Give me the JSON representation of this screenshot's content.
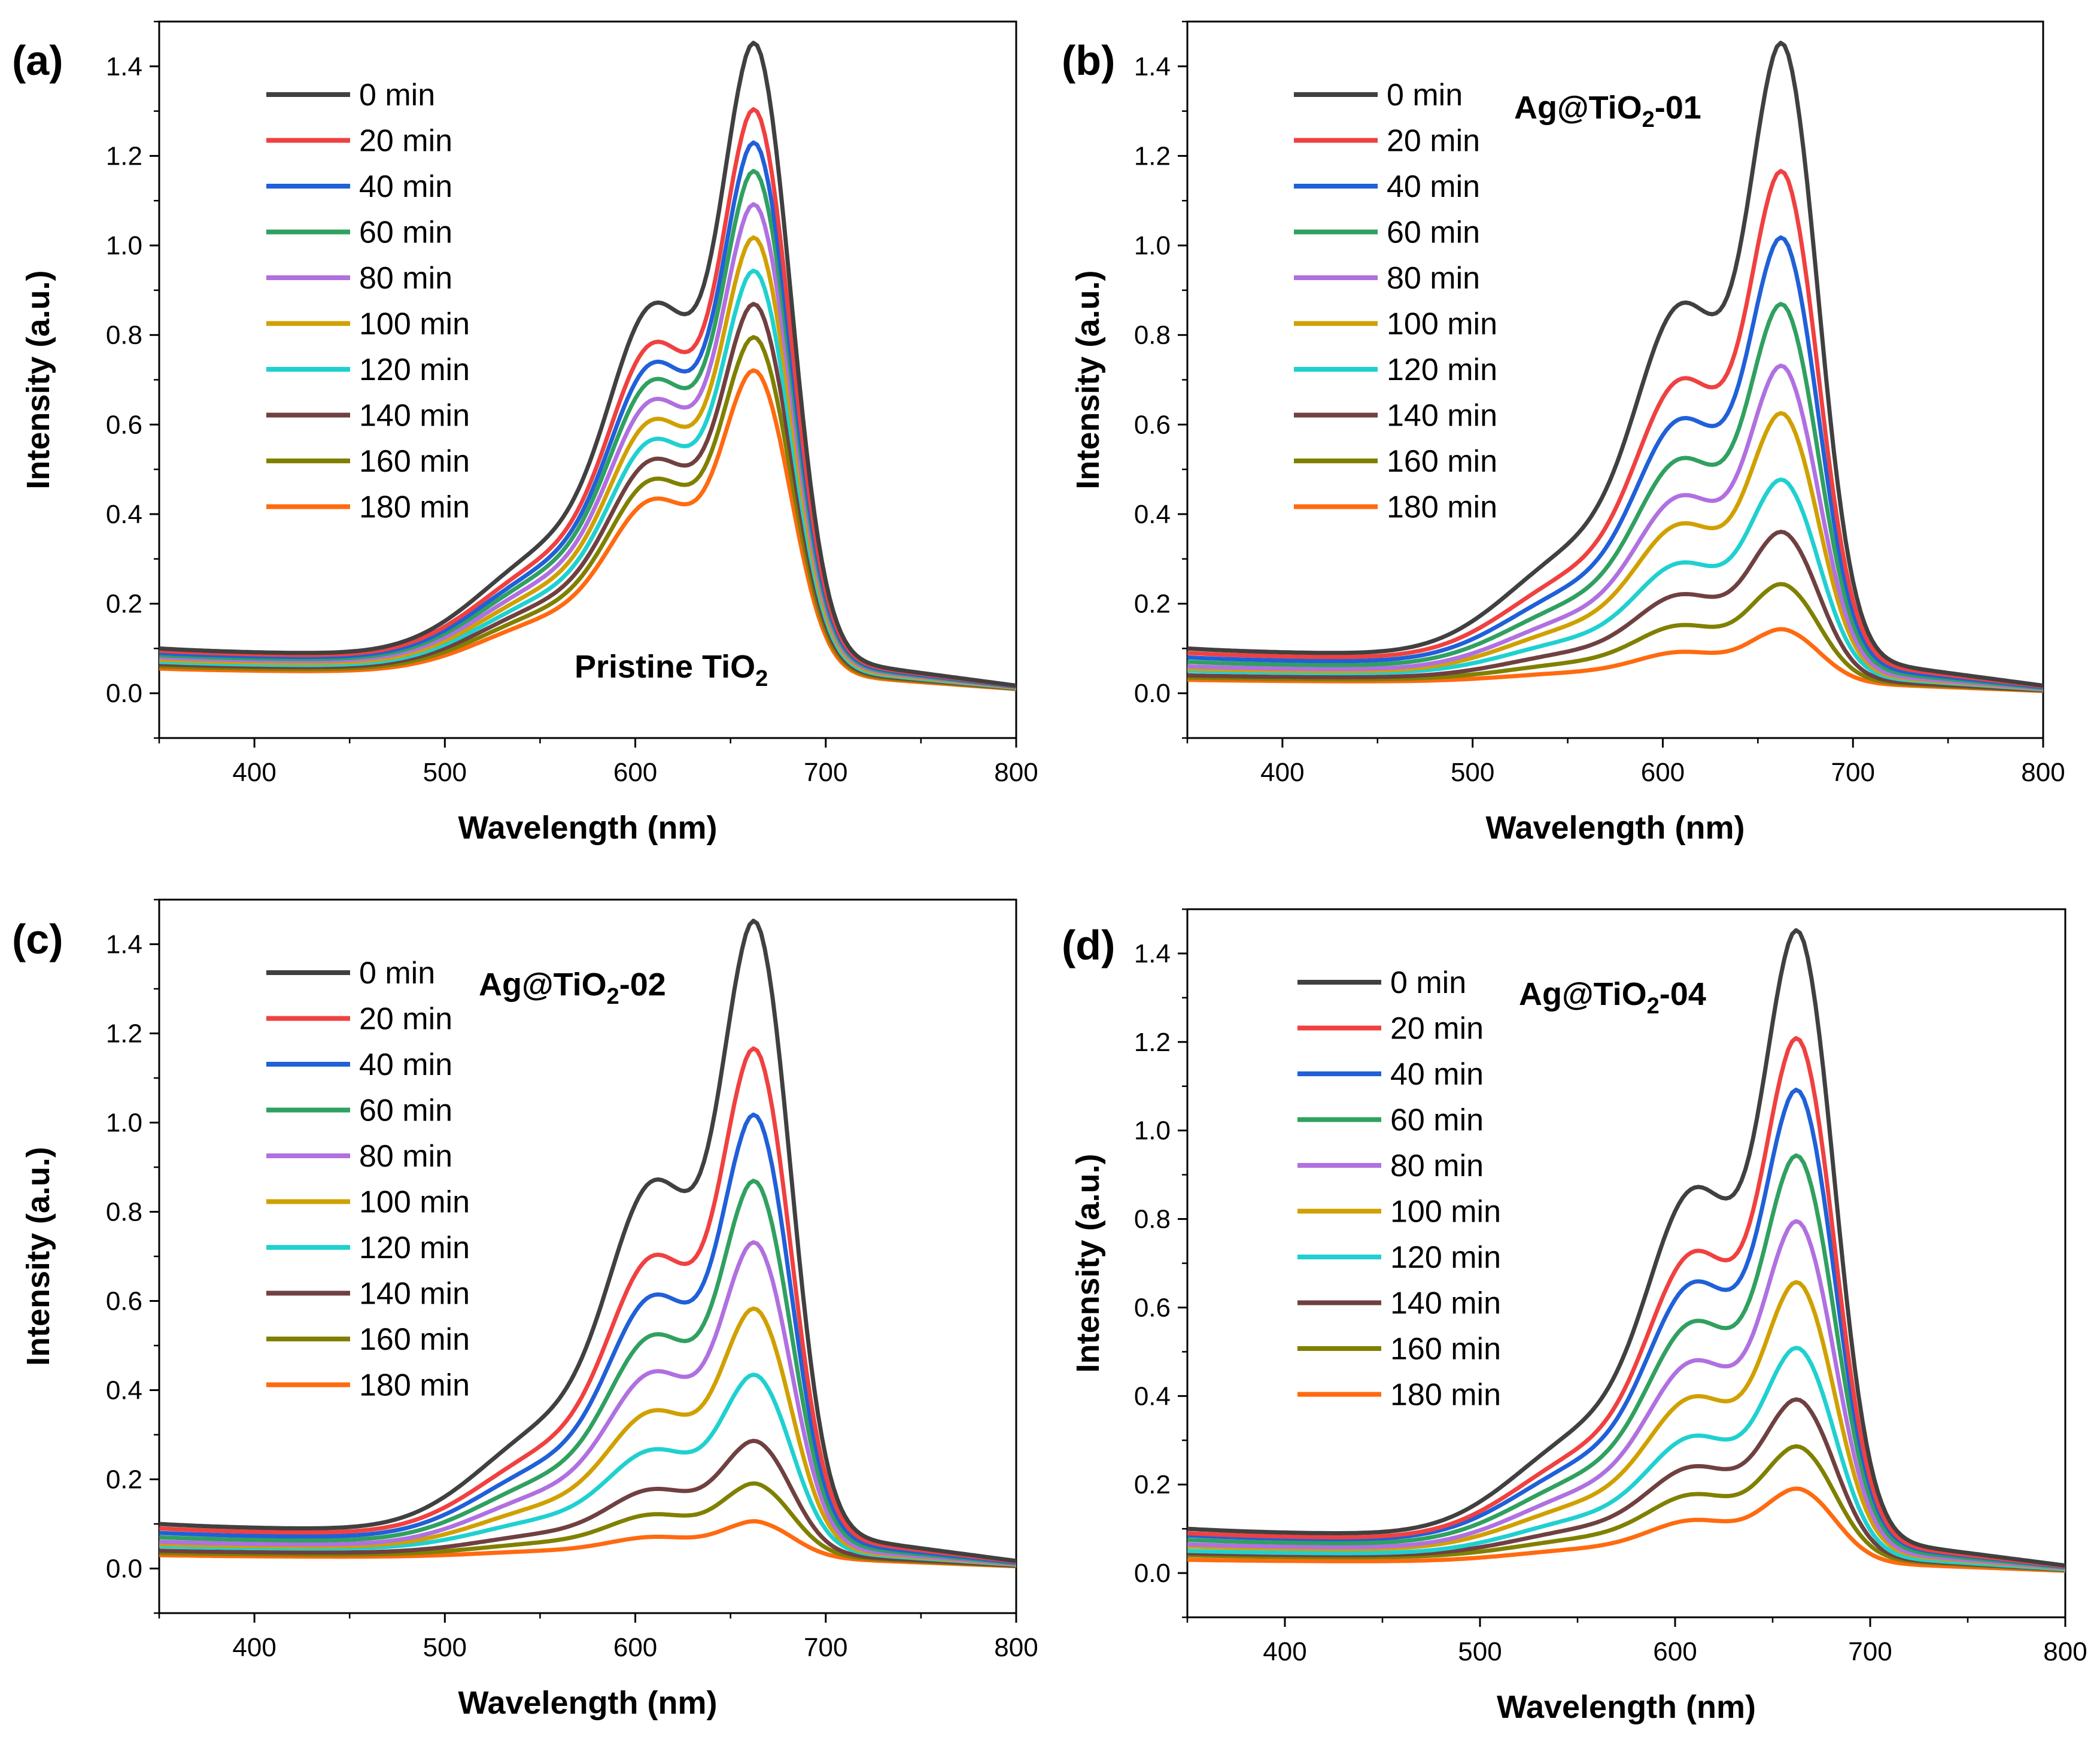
{
  "figure": {
    "colors": [
      "#404040",
      "#f04040",
      "#2060d8",
      "#30a060",
      "#b070e0",
      "#d0a000",
      "#20d0d0",
      "#704040",
      "#808000",
      "#ff6a10"
    ]
  },
  "chart_data": [
    {
      "type": "line",
      "panel_label": "(a)",
      "annotation": {
        "main": "Pristine TiO",
        "sub": "2",
        "tail": ""
      },
      "xlabel": "Wavelength (nm)",
      "ylabel": "Intensity (a.u.)",
      "xlim": [
        350,
        800
      ],
      "ylim": [
        -0.1,
        1.5
      ],
      "xticks": [
        "400",
        "500",
        "600",
        "700",
        "800"
      ],
      "yticks": [
        "0.0",
        "0.2",
        "0.4",
        "0.6",
        "0.8",
        "1.0",
        "1.2",
        "1.4"
      ],
      "legend_position": "top-left",
      "series": [
        {
          "name": "0 min",
          "peak": 1.37,
          "base": 0.1
        },
        {
          "name": "20 min",
          "peak": 1.23,
          "base": 0.095
        },
        {
          "name": "40 min",
          "peak": 1.16,
          "base": 0.09
        },
        {
          "name": "60 min",
          "peak": 1.1,
          "base": 0.085
        },
        {
          "name": "80 min",
          "peak": 1.03,
          "base": 0.08
        },
        {
          "name": "100 min",
          "peak": 0.96,
          "base": 0.075
        },
        {
          "name": "120 min",
          "peak": 0.89,
          "base": 0.07
        },
        {
          "name": "140 min",
          "peak": 0.82,
          "base": 0.065
        },
        {
          "name": "160 min",
          "peak": 0.75,
          "base": 0.06
        },
        {
          "name": "180 min",
          "peak": 0.68,
          "base": 0.055
        }
      ]
    },
    {
      "type": "line",
      "panel_label": "(b)",
      "annotation": {
        "main": "Ag@TiO",
        "sub": "2",
        "tail": "-01"
      },
      "xlabel": "Wavelength (nm)",
      "ylabel": "Intensity (a.u.)",
      "xlim": [
        350,
        800
      ],
      "ylim": [
        -0.1,
        1.5
      ],
      "xticks": [
        "400",
        "500",
        "600",
        "700",
        "800"
      ],
      "yticks": [
        "0.0",
        "0.2",
        "0.4",
        "0.6",
        "0.8",
        "1.0",
        "1.2",
        "1.4"
      ],
      "legend_position": "top-left",
      "series": [
        {
          "name": "0 min",
          "peak": 1.37,
          "base": 0.1
        },
        {
          "name": "20 min",
          "peak": 1.1,
          "base": 0.09
        },
        {
          "name": "40 min",
          "peak": 0.96,
          "base": 0.08
        },
        {
          "name": "60 min",
          "peak": 0.82,
          "base": 0.07
        },
        {
          "name": "80 min",
          "peak": 0.69,
          "base": 0.06
        },
        {
          "name": "100 min",
          "peak": 0.59,
          "base": 0.055
        },
        {
          "name": "120 min",
          "peak": 0.45,
          "base": 0.05
        },
        {
          "name": "140 min",
          "peak": 0.34,
          "base": 0.04
        },
        {
          "name": "160 min",
          "peak": 0.23,
          "base": 0.035
        },
        {
          "name": "180 min",
          "peak": 0.135,
          "base": 0.03
        }
      ]
    },
    {
      "type": "line",
      "panel_label": "(c)",
      "annotation": {
        "main": "Ag@TiO",
        "sub": "2",
        "tail": "-02"
      },
      "xlabel": "Wavelength (nm)",
      "ylabel": "Intensity (a.u.)",
      "xlim": [
        350,
        800
      ],
      "ylim": [
        -0.1,
        1.5
      ],
      "xticks": [
        "400",
        "500",
        "600",
        "700",
        "800"
      ],
      "yticks": [
        "0.0",
        "0.2",
        "0.4",
        "0.6",
        "0.8",
        "1.0",
        "1.2",
        "1.4"
      ],
      "legend_position": "top-left",
      "series": [
        {
          "name": "0 min",
          "peak": 1.37,
          "base": 0.1
        },
        {
          "name": "20 min",
          "peak": 1.1,
          "base": 0.09
        },
        {
          "name": "40 min",
          "peak": 0.96,
          "base": 0.08
        },
        {
          "name": "60 min",
          "peak": 0.82,
          "base": 0.07
        },
        {
          "name": "80 min",
          "peak": 0.69,
          "base": 0.06
        },
        {
          "name": "100 min",
          "peak": 0.55,
          "base": 0.055
        },
        {
          "name": "120 min",
          "peak": 0.41,
          "base": 0.05
        },
        {
          "name": "140 min",
          "peak": 0.27,
          "base": 0.04
        },
        {
          "name": "160 min",
          "peak": 0.18,
          "base": 0.035
        },
        {
          "name": "180 min",
          "peak": 0.1,
          "base": 0.03
        }
      ]
    },
    {
      "type": "line",
      "panel_label": "(d)",
      "annotation": {
        "main": "Ag@TiO",
        "sub": "2",
        "tail": "-04"
      },
      "xlabel": "Wavelength (nm)",
      "ylabel": "Intensity (a.u.)",
      "xlim": [
        350,
        800
      ],
      "ylim": [
        -0.1,
        1.5
      ],
      "xticks": [
        "400",
        "500",
        "600",
        "700",
        "800"
      ],
      "yticks": [
        "0.0",
        "0.2",
        "0.4",
        "0.6",
        "0.8",
        "1.0",
        "1.2",
        "1.4"
      ],
      "legend_position": "top-left",
      "series": [
        {
          "name": "0 min",
          "peak": 1.37,
          "base": 0.1
        },
        {
          "name": "20 min",
          "peak": 1.14,
          "base": 0.09
        },
        {
          "name": "40 min",
          "peak": 1.03,
          "base": 0.085
        },
        {
          "name": "60 min",
          "peak": 0.89,
          "base": 0.075
        },
        {
          "name": "80 min",
          "peak": 0.75,
          "base": 0.065
        },
        {
          "name": "100 min",
          "peak": 0.62,
          "base": 0.06
        },
        {
          "name": "120 min",
          "peak": 0.48,
          "base": 0.05
        },
        {
          "name": "140 min",
          "peak": 0.37,
          "base": 0.045
        },
        {
          "name": "160 min",
          "peak": 0.27,
          "base": 0.04
        },
        {
          "name": "180 min",
          "peak": 0.18,
          "base": 0.03
        }
      ]
    }
  ]
}
